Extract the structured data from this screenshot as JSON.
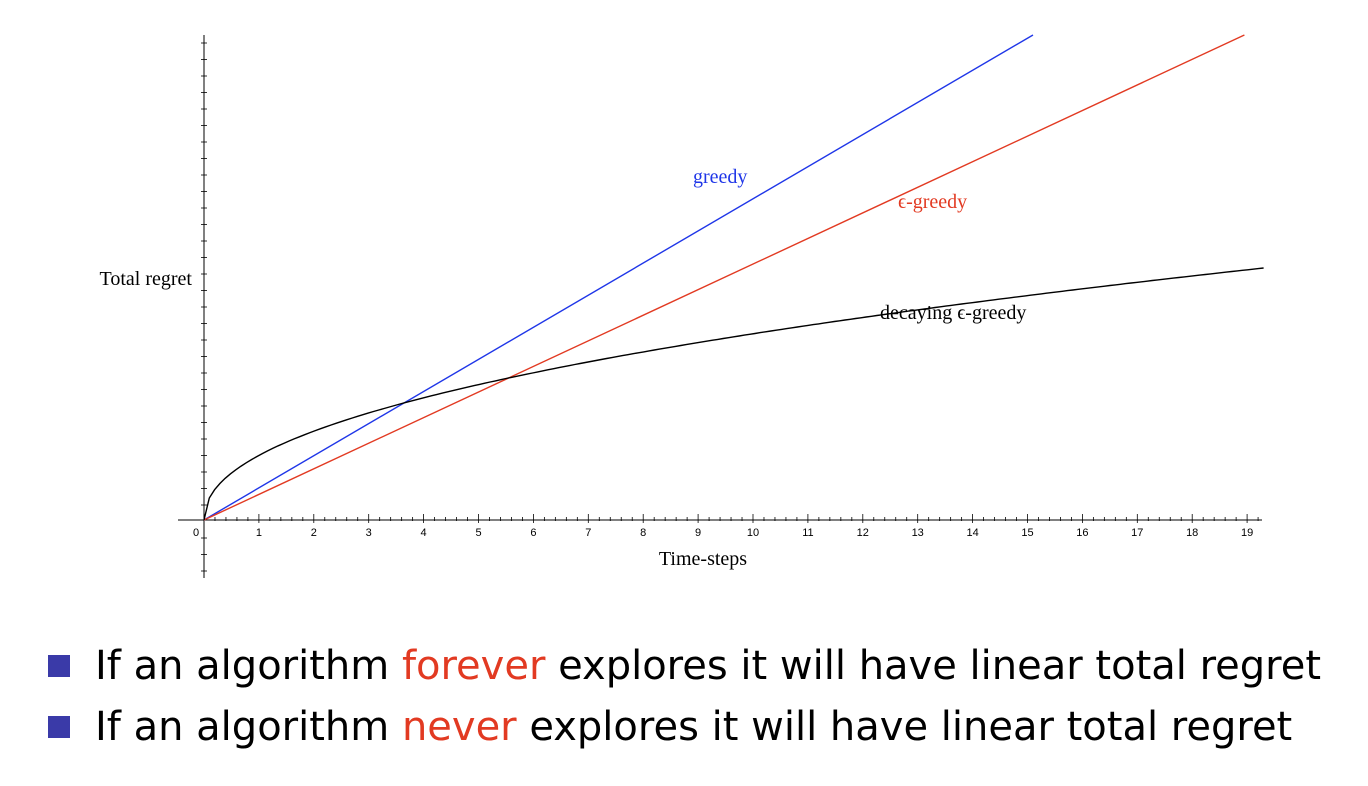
{
  "chart_data": {
    "type": "line",
    "xlabel": "Time-steps",
    "ylabel": "Total regret",
    "xlim": [
      0,
      19.3
    ],
    "x_ticks": [
      0,
      1,
      2,
      3,
      4,
      5,
      6,
      7,
      8,
      9,
      10,
      11,
      12,
      13,
      14,
      15,
      16,
      17,
      18,
      19
    ],
    "y_tick_labels": [],
    "grid": false,
    "legend": "labels on the lines",
    "series": [
      {
        "name": "greedy",
        "color": "#1f36e8",
        "x": [
          0,
          15.1
        ],
        "y": [
          0,
          485
        ]
      },
      {
        "name": "ϵ-greedy",
        "color": "#e23a22",
        "x": [
          0,
          18.95
        ],
        "y": [
          0,
          485
        ]
      },
      {
        "name": "decaying ϵ-greedy",
        "color": "#000000",
        "x": [
          0,
          0.25,
          0.5,
          1,
          2,
          3,
          4,
          4.4,
          5,
          6,
          6.6,
          7,
          8,
          10,
          12,
          14,
          16,
          18,
          19.3
        ],
        "y": [
          0,
          45.5,
          71.6,
          87.7,
          115.3,
          129.3,
          138.7,
          141.8,
          146.5,
          158.4,
          167.8,
          172.1,
          184.8,
          206.2,
          220.6,
          231.7,
          240.6,
          248.2,
          252
        ]
      }
    ],
    "annotations": [
      {
        "text": "greedy",
        "color": "#1f36e8"
      },
      {
        "text": "ϵ-greedy",
        "color": "#e23a22"
      },
      {
        "text": "decaying ϵ-greedy",
        "color": "#000000"
      }
    ]
  },
  "bullets": [
    {
      "pre": "If an algorithm ",
      "highlight": "forever",
      "post": " explores it will have linear total regret"
    },
    {
      "pre": "If an algorithm ",
      "highlight": "never",
      "post": " explores it will have linear total regret"
    }
  ],
  "colors": {
    "bullet": "#3a3aa8",
    "highlight": "#e23a22"
  }
}
